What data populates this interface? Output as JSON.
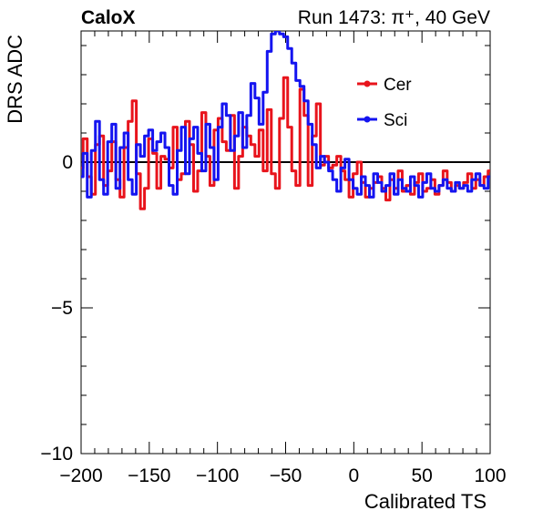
{
  "header": {
    "experiment": "CaloX",
    "run_info": "Run 1473:   π⁺, 40 GeV"
  },
  "colors": {
    "cer": "#e8141c",
    "sci": "#1414f0",
    "axis": "#000000",
    "zero_line": "#000000"
  },
  "chart_data": {
    "type": "line",
    "xlabel": "Calibrated TS",
    "ylabel": "DRS ADC",
    "xlim": [
      -200,
      100
    ],
    "ylim": [
      -10,
      4.5
    ],
    "xticks": [
      -200,
      -150,
      -100,
      -50,
      0,
      50,
      100
    ],
    "xtick_labels": [
      "−200",
      "−150",
      "−100",
      "−50",
      "0",
      "50",
      "100"
    ],
    "yticks": [
      -10,
      -5,
      0
    ],
    "ytick_labels": [
      "−10",
      "−5",
      "0"
    ],
    "zero_line": true,
    "grid": false,
    "legend_position": "top-right",
    "series": [
      {
        "name": "Cer",
        "x": [
          -200,
          -197,
          -194,
          -191,
          -188,
          -185,
          -182,
          -179,
          -176,
          -173,
          -170,
          -167,
          -164,
          -161,
          -158,
          -155,
          -152,
          -149,
          -146,
          -143,
          -140,
          -137,
          -134,
          -131,
          -128,
          -125,
          -122,
          -119,
          -116,
          -113,
          -110,
          -107,
          -104,
          -101,
          -98,
          -95,
          -92,
          -89,
          -86,
          -83,
          -80,
          -77,
          -74,
          -71,
          -68,
          -65,
          -62,
          -59,
          -56,
          -53,
          -50,
          -47,
          -44,
          -41,
          -38,
          -35,
          -32,
          -29,
          -26,
          -23,
          -20,
          -17,
          -14,
          -11,
          -8,
          -5,
          -2,
          1,
          4,
          7,
          10,
          13,
          16,
          19,
          22,
          25,
          28,
          31,
          34,
          37,
          40,
          43,
          46,
          49,
          52,
          55,
          58,
          61,
          64,
          67,
          70,
          73,
          76,
          79,
          82,
          85,
          88,
          91,
          94,
          97,
          100
        ],
        "y": [
          -0.2,
          0.8,
          -0.5,
          -1.1,
          0.6,
          0.9,
          -0.8,
          -0.3,
          0.7,
          -0.6,
          -1.2,
          0.5,
          1.4,
          2.1,
          -0.4,
          -1.6,
          -0.9,
          0.8,
          0.3,
          -0.9,
          0.2,
          0.1,
          -0.2,
          1.2,
          -0.6,
          -0.4,
          1.4,
          0.6,
          -1.0,
          -0.3,
          1.7,
          0.2,
          -0.8,
          1.1,
          1.5,
          0.7,
          0.4,
          1.6,
          -0.9,
          0.2,
          1.2,
          0.9,
          0.6,
          0.2,
          1.1,
          -0.3,
          1.8,
          -0.4,
          -0.9,
          1.5,
          2.9,
          1.2,
          -0.3,
          -0.8,
          2.5,
          1.6,
          -0.8,
          0.9,
          2.0,
          -0.1,
          0.2,
          -0.2,
          -0.1,
          0.2,
          -0.3,
          -0.6,
          -1.2,
          -0.4,
          0.0,
          -0.7,
          -1.2,
          -0.9,
          -0.7,
          -0.5,
          -0.9,
          -1.3,
          -0.6,
          -0.9,
          -0.3,
          -1.0,
          -0.8,
          -1.1,
          -0.7,
          -0.4,
          -1.0,
          -0.9,
          -0.6,
          -1.1,
          -0.8,
          -0.3,
          -0.7,
          -1.0,
          -0.8,
          -0.9,
          -0.7,
          -0.4,
          -0.9,
          -0.6,
          -0.8,
          -0.5,
          -0.3
        ]
      },
      {
        "name": "Sci",
        "x": [
          -200,
          -197,
          -194,
          -191,
          -188,
          -185,
          -182,
          -179,
          -176,
          -173,
          -170,
          -167,
          -164,
          -161,
          -158,
          -155,
          -152,
          -149,
          -146,
          -143,
          -140,
          -137,
          -134,
          -131,
          -128,
          -125,
          -122,
          -119,
          -116,
          -113,
          -110,
          -107,
          -104,
          -101,
          -98,
          -95,
          -92,
          -89,
          -86,
          -83,
          -80,
          -77,
          -74,
          -71,
          -68,
          -65,
          -62,
          -59,
          -56,
          -53,
          -50,
          -47,
          -44,
          -41,
          -38,
          -35,
          -32,
          -29,
          -26,
          -23,
          -20,
          -17,
          -14,
          -11,
          -8,
          -5,
          -2,
          1,
          4,
          7,
          10,
          13,
          16,
          19,
          22,
          25,
          28,
          31,
          34,
          37,
          40,
          43,
          46,
          49,
          52,
          55,
          58,
          61,
          64,
          67,
          70,
          73,
          76,
          79,
          82,
          85,
          88,
          91,
          94,
          97,
          100
        ],
        "y": [
          -0.5,
          0.3,
          -1.2,
          0.4,
          1.4,
          -0.6,
          -1.1,
          0.7,
          1.3,
          -0.9,
          0.5,
          1.0,
          -0.6,
          -1.1,
          0.6,
          0.2,
          0.9,
          1.1,
          0.4,
          0.7,
          1.0,
          0.5,
          -0.8,
          -1.1,
          0.4,
          1.2,
          -0.4,
          0.8,
          1.2,
          0.3,
          -0.3,
          1.3,
          0.5,
          -0.6,
          1.2,
          2.0,
          1.6,
          0.4,
          0.9,
          1.7,
          0.5,
          1.6,
          2.7,
          2.2,
          1.3,
          2.4,
          3.8,
          4.4,
          4.5,
          4.4,
          4.3,
          3.9,
          3.4,
          2.8,
          2.6,
          2.1,
          1.3,
          0.6,
          -0.2,
          0.2,
          0.0,
          -0.3,
          -0.6,
          -1.0,
          -0.2,
          0.1,
          -0.6,
          -0.9,
          -1.1,
          -0.5,
          -0.8,
          -1.2,
          -0.4,
          -0.7,
          -1.0,
          -0.8,
          -0.4,
          -1.1,
          -0.6,
          -0.9,
          -1.0,
          -0.5,
          -0.8,
          -1.2,
          -0.7,
          -0.4,
          -0.9,
          -1.0,
          -0.8,
          -0.6,
          -0.9,
          -1.0,
          -0.7,
          -0.9,
          -0.8,
          -1.0,
          -0.6,
          -0.4,
          -0.8,
          -0.9,
          -0.5
        ]
      }
    ]
  }
}
